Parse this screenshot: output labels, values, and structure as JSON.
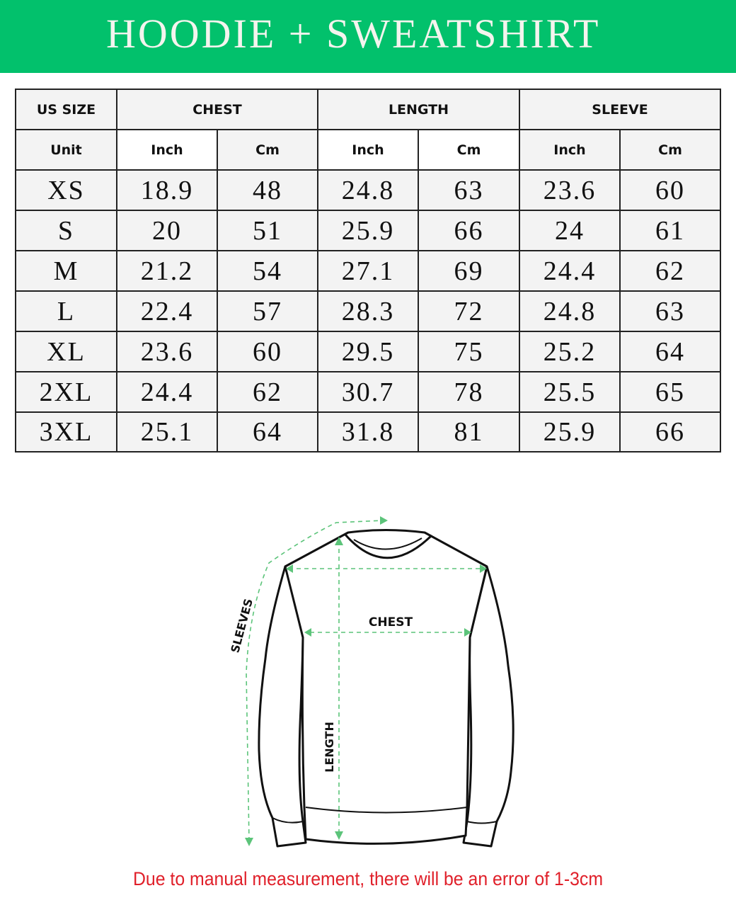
{
  "title": "HOODIE + SWEATSHIRT",
  "table": {
    "headers": [
      "US SIZE",
      "CHEST",
      "LENGTH",
      "SLEEVE"
    ],
    "units": [
      "Unit",
      "Inch",
      "Cm",
      "Inch",
      "Cm",
      "Inch",
      "Cm"
    ],
    "rows": [
      [
        "XS",
        "18.9",
        "48",
        "24.8",
        "63",
        "23.6",
        "60"
      ],
      [
        "S",
        "20",
        "51",
        "25.9",
        "66",
        "24",
        "61"
      ],
      [
        "M",
        "21.2",
        "54",
        "27.1",
        "69",
        "24.4",
        "62"
      ],
      [
        "L",
        "22.4",
        "57",
        "28.3",
        "72",
        "24.8",
        "63"
      ],
      [
        "XL",
        "23.6",
        "60",
        "29.5",
        "75",
        "25.2",
        "64"
      ],
      [
        "2XL",
        "24.4",
        "62",
        "30.7",
        "78",
        "25.5",
        "65"
      ],
      [
        "3XL",
        "25.1",
        "64",
        "31.8",
        "81",
        "25.9",
        "66"
      ]
    ]
  },
  "diagram": {
    "chest_label": "CHEST",
    "length_label": "LENGTH",
    "sleeves_label": "SLEEVES"
  },
  "note": "Due to manual measurement, there will be an error of 1-3cm",
  "colors": {
    "banner": "#02c16c",
    "note": "#e0202a",
    "measure_line": "#5cc47a"
  }
}
